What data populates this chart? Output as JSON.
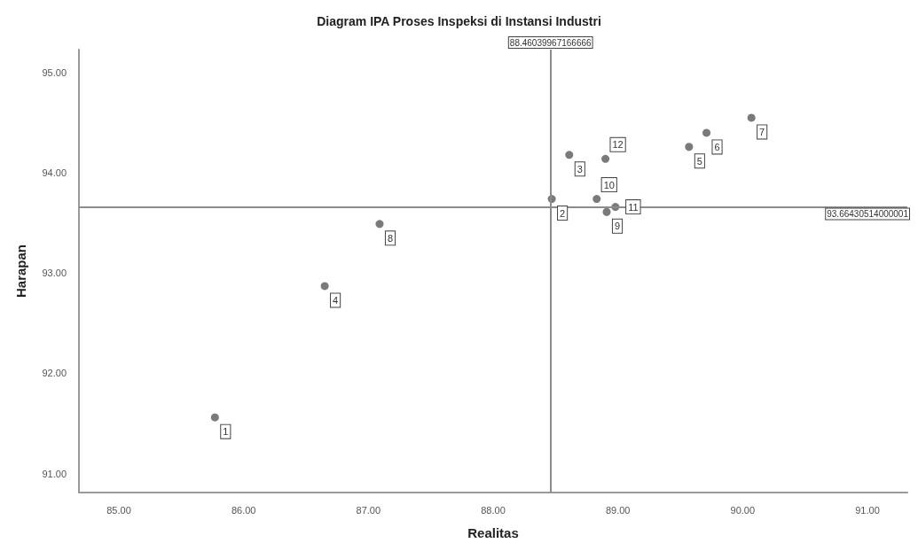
{
  "chart_data": {
    "type": "scatter",
    "title": "Diagram IPA Proses Inspeksi di Instansi Industri",
    "xlabel": "Realitas",
    "ylabel": "Harapan",
    "x": [
      85.77,
      88.47,
      88.61,
      86.65,
      89.57,
      89.71,
      90.07,
      87.09,
      88.91,
      88.83,
      88.98,
      88.9
    ],
    "series": [
      {
        "color": "#595959",
        "values": [
          91.56,
          93.74,
          94.18,
          92.87,
          94.26,
          94.4,
          94.55,
          93.49,
          93.61,
          93.74,
          93.66,
          94.14
        ]
      }
    ],
    "annotations": [
      {
        "text": "1",
        "x": 85.77,
        "y": 91.56
      },
      {
        "text": "2",
        "x": 88.47,
        "y": 93.74
      },
      {
        "text": "3",
        "x": 88.61,
        "y": 94.18
      },
      {
        "text": "4",
        "x": 86.65,
        "y": 92.87
      },
      {
        "text": "5",
        "x": 89.57,
        "y": 94.26
      },
      {
        "text": "6",
        "x": 89.71,
        "y": 94.4
      },
      {
        "text": "7",
        "x": 90.07,
        "y": 94.55
      },
      {
        "text": "8",
        "x": 87.09,
        "y": 93.49
      },
      {
        "text": "9",
        "x": 88.91,
        "y": 93.61
      },
      {
        "text": "10",
        "x": 88.83,
        "y": 93.74
      },
      {
        "text": "11",
        "x": 88.98,
        "y": 93.66
      },
      {
        "text": "12",
        "x": 88.9,
        "y": 94.14
      }
    ],
    "ref_lines": [
      {
        "axis": "x",
        "value": 88.46039967166666,
        "label": "88.46039967166666",
        "color": "#8c8c8c"
      },
      {
        "axis": "y",
        "value": 93.66430514000001,
        "label": "93.66430514000001",
        "color": "#8c8c8c"
      }
    ],
    "xlim": [
      84.68,
      91.32
    ],
    "ylim": [
      90.81,
      95.23
    ],
    "xticks": [
      {
        "value": 85,
        "label": "85.00"
      },
      {
        "value": 86,
        "label": "86.00"
      },
      {
        "value": 87,
        "label": "87.00"
      },
      {
        "value": 88,
        "label": "88.00"
      },
      {
        "value": 89,
        "label": "89.00"
      },
      {
        "value": 90,
        "label": "90.00"
      },
      {
        "value": 91,
        "label": "91.00"
      }
    ],
    "yticks": [
      {
        "value": 91,
        "label": "91.00"
      },
      {
        "value": 92,
        "label": "92.00"
      },
      {
        "value": 93,
        "label": "93.00"
      },
      {
        "value": 94,
        "label": "94.00"
      },
      {
        "value": 95,
        "label": "95.00"
      }
    ],
    "grid": false,
    "marker": "circle"
  }
}
